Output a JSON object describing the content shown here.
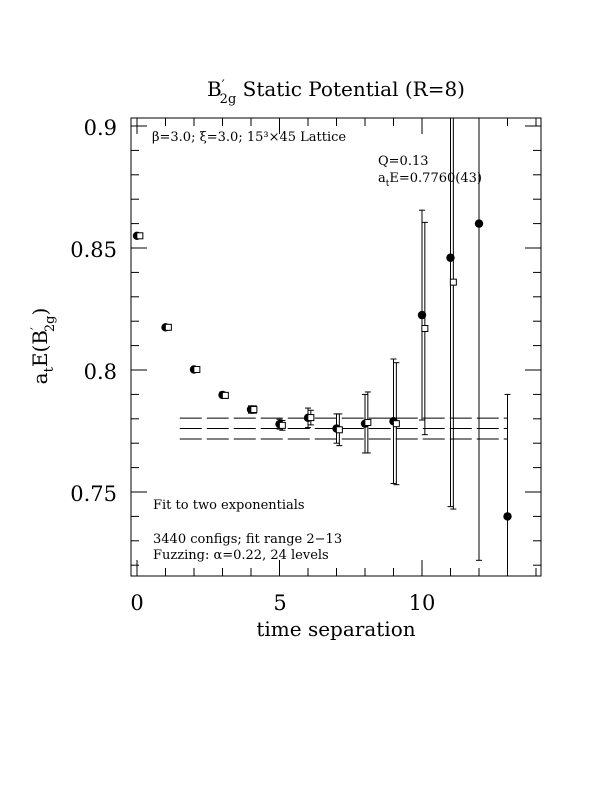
{
  "chart_data": {
    "type": "scatter",
    "title": "B′2g Static Potential (R=8)",
    "title_main": "B",
    "title_prime": "′",
    "title_sub": "2g",
    "title_rest": " Static Potential (R=8)",
    "xlabel": "time separation",
    "ylabel": "atE(B′2g)",
    "ylabel_a": "a",
    "ylabel_t": "t",
    "ylabel_E": "E(B",
    "ylabel_prime": "′",
    "ylabel_sub": "2g",
    "ylabel_close": ")",
    "xlim": [
      -0.2,
      14.2
    ],
    "ylim": [
      0.716,
      0.904
    ],
    "x_ticks": [
      0,
      5,
      10
    ],
    "x_tick_labels": [
      "0",
      "5",
      "10"
    ],
    "y_ticks": [
      0.75,
      0.8,
      0.85,
      0.9
    ],
    "y_tick_labels": [
      "0.75",
      "0.8",
      "0.85",
      "0.9"
    ],
    "annotation_top": "β=3.0; ξ=3.0; 15³×45 Lattice",
    "q_label": "Q=0.13",
    "fit_value_label": "atE=0.7760(43)",
    "fit_value_a": "a",
    "fit_value_t": "t",
    "fit_value_rest": "E=0.7760(43)",
    "fit_method": "Fit to two exponentials",
    "configs_label": "3440 configs; fit range 2−13",
    "fuzzing_label": "Fuzzing: α=0.22, 24 levels",
    "fit": {
      "value": 0.776,
      "error": 0.0043,
      "x_start": 1.5,
      "x_end": 13.0
    },
    "series": [
      {
        "marker": "filled-circle",
        "points": [
          {
            "x": 0,
            "y": 0.855,
            "err": 0.0006
          },
          {
            "x": 1,
            "y": 0.8175,
            "err": 0.0008
          },
          {
            "x": 2,
            "y": 0.8002,
            "err": 0.001
          },
          {
            "x": 3,
            "y": 0.7898,
            "err": 0.0012
          },
          {
            "x": 4,
            "y": 0.7838,
            "err": 0.0015
          },
          {
            "x": 5,
            "y": 0.7778,
            "err": 0.002
          },
          {
            "x": 6,
            "y": 0.7804,
            "err": 0.004
          },
          {
            "x": 7,
            "y": 0.776,
            "err": 0.006
          },
          {
            "x": 8,
            "y": 0.778,
            "err": 0.012
          },
          {
            "x": 9,
            "y": 0.779,
            "err": 0.0255
          },
          {
            "x": 10,
            "y": 0.8225,
            "err": 0.043
          },
          {
            "x": 11,
            "y": 0.846,
            "err": 0.102
          },
          {
            "x": 12,
            "y": 0.86,
            "err": 0.138
          },
          {
            "x": 13,
            "y": 0.74,
            "err": 0.05
          }
        ]
      },
      {
        "marker": "open-square",
        "points": [
          {
            "x": 0.1,
            "y": 0.855,
            "err": 0.0006
          },
          {
            "x": 1.1,
            "y": 0.8175,
            "err": 0.0008
          },
          {
            "x": 2.1,
            "y": 0.8002,
            "err": 0.001
          },
          {
            "x": 3.1,
            "y": 0.7896,
            "err": 0.0012
          },
          {
            "x": 4.1,
            "y": 0.7838,
            "err": 0.0015
          },
          {
            "x": 5.1,
            "y": 0.7773,
            "err": 0.002
          },
          {
            "x": 6.1,
            "y": 0.7805,
            "err": 0.003
          },
          {
            "x": 7.1,
            "y": 0.7755,
            "err": 0.0065
          },
          {
            "x": 8.1,
            "y": 0.7785,
            "err": 0.0125
          },
          {
            "x": 9.1,
            "y": 0.778,
            "err": 0.025
          },
          {
            "x": 10.1,
            "y": 0.817,
            "err": 0.0435
          },
          {
            "x": 11.1,
            "y": 0.836,
            "err": 0.093
          }
        ]
      }
    ]
  }
}
